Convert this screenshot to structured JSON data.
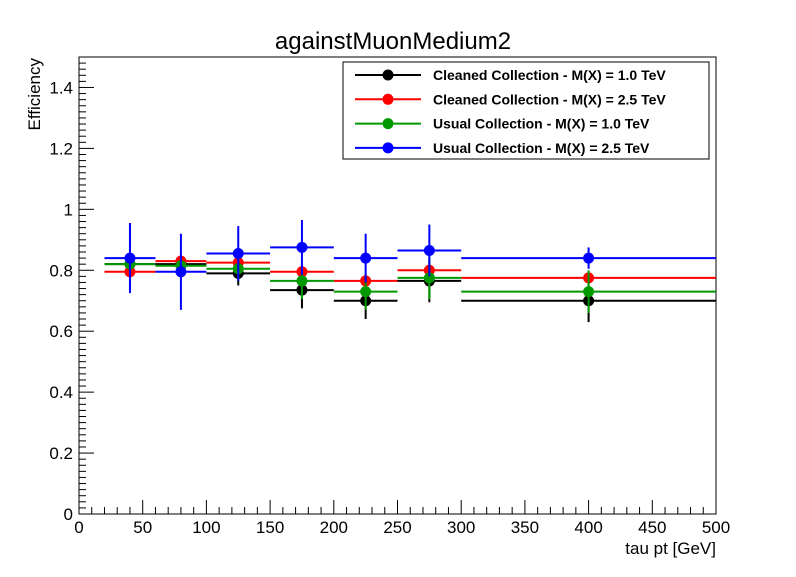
{
  "chart_data": {
    "type": "scatter",
    "title": "againstMuonMedium2",
    "xlabel": "tau pt [GeV]",
    "ylabel": "Efficiency",
    "xlim": [
      0,
      500
    ],
    "ylim": [
      0,
      1.5
    ],
    "grid": false,
    "legend_position": "top-right",
    "xticks": [
      0,
      50,
      100,
      150,
      200,
      250,
      300,
      350,
      400,
      450,
      500
    ],
    "xtick_labels": [
      "0",
      "50",
      "100",
      "150",
      "200",
      "250",
      "300",
      "350",
      "400",
      "450",
      "500"
    ],
    "yticks": [
      0,
      0.2,
      0.4,
      0.6,
      0.8,
      1,
      1.2,
      1.4
    ],
    "ytick_labels": [
      "0",
      "0.2",
      "0.4",
      "0.6",
      "0.8",
      "1",
      "1.2",
      "1.4"
    ],
    "bins": [
      [
        20,
        60
      ],
      [
        60,
        100
      ],
      [
        100,
        150
      ],
      [
        150,
        200
      ],
      [
        200,
        250
      ],
      [
        250,
        300
      ],
      [
        300,
        500
      ]
    ],
    "x": [
      40,
      80,
      125,
      175,
      225,
      275,
      400
    ],
    "series": [
      {
        "name": "Cleaned Collection - M(X) = 1.0 TeV",
        "color": "#000000",
        "values": [
          0.82,
          0.82,
          0.79,
          0.735,
          0.7,
          0.765,
          0.7
        ],
        "errors": [
          0.03,
          0.03,
          0.04,
          0.06,
          0.06,
          0.07,
          0.07
        ]
      },
      {
        "name": "Cleaned Collection - M(X) = 2.5 TeV",
        "color": "#ff0000",
        "values": [
          0.795,
          0.83,
          0.825,
          0.795,
          0.765,
          0.8,
          0.775
        ],
        "errors": [
          0.02,
          0.02,
          0.02,
          0.02,
          0.02,
          0.02,
          0.01
        ]
      },
      {
        "name": "Usual Collection - M(X) = 1.0 TeV",
        "color": "#009900",
        "values": [
          0.82,
          0.815,
          0.805,
          0.765,
          0.73,
          0.775,
          0.73
        ],
        "errors": [
          0.03,
          0.03,
          0.04,
          0.06,
          0.06,
          0.07,
          0.07
        ]
      },
      {
        "name": "Usual Collection - M(X) = 2.5 TeV",
        "color": "#0000ff",
        "values": [
          0.84,
          0.795,
          0.855,
          0.875,
          0.84,
          0.865,
          0.84
        ],
        "errors": [
          0.115,
          0.125,
          0.09,
          0.09,
          0.08,
          0.085,
          0.035
        ]
      }
    ]
  }
}
